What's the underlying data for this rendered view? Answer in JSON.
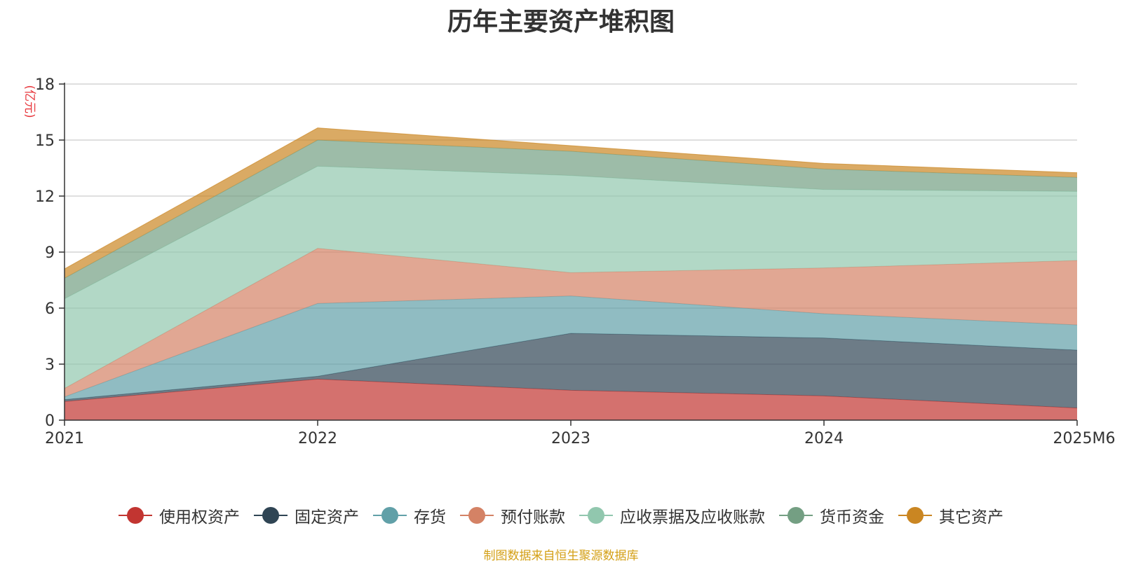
{
  "title": "历年主要资产堆积图",
  "source_note": "制图数据来自恒生聚源数据库",
  "source_note_color": "#D4A017",
  "chart_data": {
    "type": "area",
    "stacked": true,
    "title": "历年主要资产堆积图",
    "ylabel": "(亿元)",
    "ylabel_color": "#E8383D",
    "x": [
      "2021",
      "2022",
      "2023",
      "2024",
      "2025M6"
    ],
    "ylim": [
      0,
      18
    ],
    "yticks": [
      0,
      3,
      6,
      9,
      12,
      15,
      18
    ],
    "grid": true,
    "legend_position": "bottom",
    "series": [
      {
        "name": "使用权资产",
        "color": "#C23531",
        "values": [
          1.0,
          2.2,
          1.6,
          1.3,
          0.65
        ]
      },
      {
        "name": "固定资产",
        "color": "#2F4554",
        "values": [
          0.1,
          0.15,
          3.05,
          3.1,
          3.1
        ]
      },
      {
        "name": "存货",
        "color": "#61A0A8",
        "values": [
          0.15,
          3.9,
          2.0,
          1.3,
          1.35
        ]
      },
      {
        "name": "预付账款",
        "color": "#D48265",
        "values": [
          0.45,
          2.95,
          1.25,
          2.45,
          3.45
        ]
      },
      {
        "name": "应收票据及应收账款",
        "color": "#91C7AE",
        "values": [
          4.8,
          4.4,
          5.2,
          4.2,
          3.7
        ]
      },
      {
        "name": "货币资金",
        "color": "#749F83",
        "values": [
          1.1,
          1.4,
          1.3,
          1.1,
          0.75
        ]
      },
      {
        "name": "其它资产",
        "color": "#CA8622",
        "values": [
          0.5,
          0.65,
          0.3,
          0.3,
          0.25
        ]
      }
    ]
  }
}
